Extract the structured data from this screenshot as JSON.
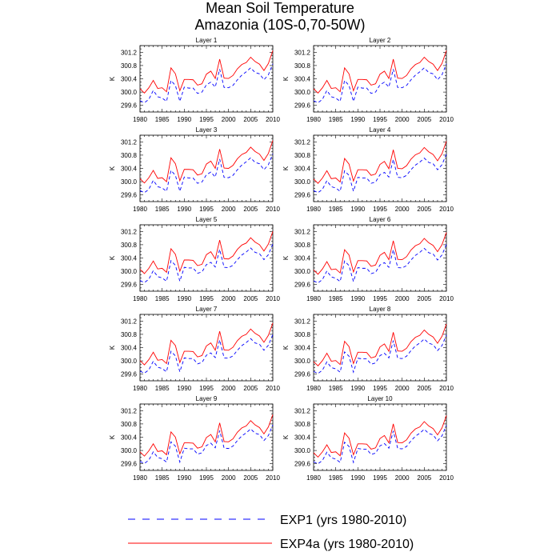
{
  "figure": {
    "title_line1": "Mean Soil Temperature",
    "title_line2": "Amazonia (10S-0,70-50W)"
  },
  "colors": {
    "exp1": "#0000ff",
    "exp4a": "#ff0000",
    "frame": "#000000"
  },
  "legend": {
    "placement": "bottom",
    "entries": [
      {
        "label": "EXP1 (yrs 1980-2010)",
        "color": "#0000ff",
        "style": "dashed"
      },
      {
        "label": "EXP4a (yrs 1980-2010)",
        "color": "#ff0000",
        "style": "solid"
      }
    ]
  },
  "chart_data": {
    "type": "line",
    "panel_count": 10,
    "layout": "5 rows x 2 columns",
    "ylabel": "K",
    "x": [
      1980,
      1981,
      1982,
      1983,
      1984,
      1985,
      1986,
      1987,
      1988,
      1989,
      1990,
      1991,
      1992,
      1993,
      1994,
      1995,
      1996,
      1997,
      1998,
      1999,
      2000,
      2001,
      2002,
      2003,
      2004,
      2005,
      2006,
      2007,
      2008,
      2009,
      2010
    ],
    "xlim": [
      1980,
      2010
    ],
    "xticks": [
      1980,
      1985,
      1990,
      1995,
      2000,
      2005,
      2010
    ],
    "xtick_labels": [
      "1980",
      "1985",
      "1990",
      "1995",
      "2000",
      "2005",
      "2010"
    ],
    "ylim": [
      299.4,
      301.4
    ],
    "yticks": [
      299.6,
      300.0,
      300.4,
      300.8,
      301.2
    ],
    "ytick_labels": [
      "299.6",
      "300.0",
      "300.4",
      "300.8",
      "301.2"
    ],
    "grid": false,
    "series_names": [
      "EXP1 (yrs 1980-2010)",
      "EXP4a (yrs 1980-2010)"
    ],
    "panels": [
      {
        "title": "Layer 1",
        "series": [
          {
            "name": "EXP1 (yrs 1980-2010)",
            "values": [
              299.74,
              299.68,
              299.78,
              300.05,
              299.86,
              299.82,
              299.72,
              300.35,
              300.2,
              299.72,
              300.15,
              300.12,
              300.12,
              299.96,
              300.0,
              300.22,
              300.3,
              300.15,
              300.69,
              300.14,
              300.13,
              300.2,
              300.37,
              300.51,
              300.61,
              300.73,
              300.59,
              300.55,
              300.37,
              300.52,
              300.85
            ]
          },
          {
            "name": "EXP4a (yrs 1980-2010)",
            "values": [
              300.1,
              299.97,
              300.13,
              300.35,
              300.11,
              300.13,
              300.01,
              300.73,
              300.55,
              300.04,
              300.38,
              300.38,
              300.37,
              300.21,
              300.25,
              300.54,
              300.63,
              300.41,
              300.99,
              300.42,
              300.41,
              300.5,
              300.7,
              300.83,
              300.89,
              301.05,
              300.92,
              300.84,
              300.65,
              300.86,
              301.25
            ]
          }
        ]
      },
      {
        "title": "Layer 2",
        "series": [
          {
            "name": "EXP1 (yrs 1980-2010)",
            "values": [
              299.74,
              299.68,
              299.78,
              300.05,
              299.86,
              299.82,
              299.72,
              300.35,
              300.2,
              299.72,
              300.15,
              300.12,
              300.12,
              299.96,
              300.0,
              300.22,
              300.3,
              300.15,
              300.69,
              300.14,
              300.13,
              300.2,
              300.37,
              300.51,
              300.61,
              300.73,
              300.59,
              300.55,
              300.37,
              300.52,
              300.85
            ]
          },
          {
            "name": "EXP4a (yrs 1980-2010)",
            "values": [
              300.1,
              299.97,
              300.13,
              300.35,
              300.11,
              300.13,
              300.01,
              300.73,
              300.55,
              300.04,
              300.38,
              300.38,
              300.37,
              300.21,
              300.25,
              300.54,
              300.63,
              300.41,
              300.99,
              300.42,
              300.41,
              300.5,
              300.7,
              300.83,
              300.89,
              301.05,
              300.92,
              300.84,
              300.65,
              300.86,
              301.25
            ]
          }
        ]
      },
      {
        "title": "Layer 3",
        "series": [
          {
            "name": "EXP1 (yrs 1980-2010)",
            "values": [
              299.73,
              299.67,
              299.77,
              300.04,
              299.85,
              299.81,
              299.71,
              300.34,
              300.19,
              299.71,
              300.14,
              300.11,
              300.11,
              299.95,
              299.99,
              300.21,
              300.29,
              300.14,
              300.68,
              300.13,
              300.12,
              300.19,
              300.36,
              300.5,
              300.6,
              300.72,
              300.58,
              300.54,
              300.36,
              300.51,
              300.84
            ]
          },
          {
            "name": "EXP4a (yrs 1980-2010)",
            "values": [
              300.09,
              299.96,
              300.12,
              300.34,
              300.1,
              300.12,
              300.0,
              300.72,
              300.54,
              300.03,
              300.37,
              300.37,
              300.36,
              300.2,
              300.24,
              300.53,
              300.62,
              300.4,
              300.98,
              300.41,
              300.4,
              300.49,
              300.69,
              300.82,
              300.88,
              301.04,
              300.91,
              300.83,
              300.64,
              300.85,
              301.24
            ]
          }
        ]
      },
      {
        "title": "Layer 4",
        "series": [
          {
            "name": "EXP1 (yrs 1980-2010)",
            "values": [
              299.73,
              299.67,
              299.77,
              300.03,
              299.85,
              299.81,
              299.71,
              300.33,
              300.19,
              299.71,
              300.13,
              300.11,
              300.11,
              299.95,
              299.99,
              300.21,
              300.28,
              300.14,
              300.67,
              300.13,
              300.12,
              300.19,
              300.36,
              300.5,
              300.59,
              300.71,
              300.58,
              300.54,
              300.36,
              300.51,
              300.83
            ]
          },
          {
            "name": "EXP4a (yrs 1980-2010)",
            "values": [
              300.08,
              299.95,
              300.11,
              300.33,
              300.09,
              300.11,
              299.99,
              300.7,
              300.53,
              300.02,
              300.36,
              300.36,
              300.35,
              300.19,
              300.23,
              300.52,
              300.61,
              300.39,
              300.96,
              300.4,
              300.39,
              300.48,
              300.68,
              300.81,
              300.87,
              301.03,
              300.9,
              300.82,
              300.63,
              300.84,
              301.22
            ]
          }
        ]
      },
      {
        "title": "Layer 5",
        "series": [
          {
            "name": "EXP1 (yrs 1980-2010)",
            "values": [
              299.72,
              299.66,
              299.76,
              300.02,
              299.84,
              299.8,
              299.7,
              300.32,
              300.18,
              299.7,
              300.12,
              300.1,
              300.1,
              299.94,
              299.98,
              300.2,
              300.27,
              300.13,
              300.66,
              300.12,
              300.11,
              300.18,
              300.35,
              300.49,
              300.58,
              300.7,
              300.57,
              300.53,
              300.35,
              300.5,
              300.82
            ]
          },
          {
            "name": "EXP4a (yrs 1980-2010)",
            "values": [
              300.06,
              299.93,
              300.09,
              300.31,
              300.07,
              300.09,
              299.97,
              300.68,
              300.51,
              300.0,
              300.34,
              300.34,
              300.33,
              300.17,
              300.21,
              300.5,
              300.59,
              300.37,
              300.94,
              300.38,
              300.37,
              300.46,
              300.66,
              300.79,
              300.85,
              301.01,
              300.88,
              300.8,
              300.61,
              300.82,
              301.2
            ]
          }
        ]
      },
      {
        "title": "Layer 6",
        "series": [
          {
            "name": "EXP1 (yrs 1980-2010)",
            "values": [
              299.71,
              299.65,
              299.75,
              300.01,
              299.83,
              299.79,
              299.69,
              300.31,
              300.17,
              299.69,
              300.11,
              300.09,
              300.09,
              299.93,
              299.97,
              300.19,
              300.26,
              300.12,
              300.65,
              300.11,
              300.1,
              300.17,
              300.34,
              300.48,
              300.57,
              300.69,
              300.56,
              300.52,
              300.34,
              300.49,
              300.81
            ]
          },
          {
            "name": "EXP4a (yrs 1980-2010)",
            "values": [
              300.04,
              299.91,
              300.07,
              300.29,
              300.05,
              300.07,
              299.95,
              300.65,
              300.49,
              299.98,
              300.32,
              300.32,
              300.31,
              300.15,
              300.19,
              300.48,
              300.57,
              300.35,
              300.92,
              300.36,
              300.35,
              300.44,
              300.64,
              300.77,
              300.83,
              300.99,
              300.86,
              300.78,
              300.59,
              300.8,
              301.17
            ]
          }
        ]
      },
      {
        "title": "Layer 7",
        "series": [
          {
            "name": "EXP1 (yrs 1980-2010)",
            "values": [
              299.69,
              299.63,
              299.73,
              299.99,
              299.81,
              299.77,
              299.67,
              300.29,
              300.15,
              299.67,
              300.09,
              300.07,
              300.07,
              299.91,
              299.95,
              300.17,
              300.24,
              300.1,
              300.63,
              300.09,
              300.08,
              300.15,
              300.32,
              300.46,
              300.55,
              300.67,
              300.54,
              300.5,
              300.32,
              300.47,
              300.79
            ]
          },
          {
            "name": "EXP4a (yrs 1980-2010)",
            "values": [
              300.01,
              299.88,
              300.04,
              300.26,
              300.02,
              300.04,
              299.92,
              300.62,
              300.46,
              299.95,
              300.29,
              300.29,
              300.28,
              300.12,
              300.16,
              300.45,
              300.54,
              300.32,
              300.89,
              300.33,
              300.32,
              300.41,
              300.61,
              300.74,
              300.8,
              300.96,
              300.83,
              300.75,
              300.56,
              300.77,
              301.14
            ]
          }
        ]
      },
      {
        "title": "Layer 8",
        "series": [
          {
            "name": "EXP1 (yrs 1980-2010)",
            "values": [
              299.68,
              299.62,
              299.72,
              299.97,
              299.8,
              299.76,
              299.66,
              300.27,
              300.14,
              299.66,
              300.08,
              300.06,
              300.06,
              299.9,
              299.94,
              300.16,
              300.23,
              300.09,
              300.61,
              300.08,
              300.07,
              300.14,
              300.31,
              300.45,
              300.54,
              300.66,
              300.53,
              300.49,
              300.31,
              300.46,
              300.78
            ]
          },
          {
            "name": "EXP4a (yrs 1980-2010)",
            "values": [
              299.98,
              299.85,
              300.01,
              300.23,
              299.99,
              300.01,
              299.89,
              300.59,
              300.43,
              299.92,
              300.26,
              300.26,
              300.25,
              300.09,
              300.13,
              300.42,
              300.51,
              300.29,
              300.86,
              300.3,
              300.29,
              300.38,
              300.58,
              300.71,
              300.77,
              300.93,
              300.8,
              300.72,
              300.53,
              300.74,
              301.11
            ]
          }
        ]
      },
      {
        "title": "Layer 9",
        "series": [
          {
            "name": "EXP1 (yrs 1980-2010)",
            "values": [
              299.67,
              299.61,
              299.71,
              299.96,
              299.79,
              299.75,
              299.65,
              300.26,
              300.13,
              299.65,
              300.07,
              300.05,
              300.05,
              299.89,
              299.93,
              300.15,
              300.22,
              300.08,
              300.6,
              300.07,
              300.06,
              300.13,
              300.3,
              300.44,
              300.53,
              300.65,
              300.52,
              300.48,
              300.3,
              300.45,
              300.77
            ]
          },
          {
            "name": "EXP4a (yrs 1980-2010)",
            "values": [
              299.96,
              299.83,
              299.99,
              300.2,
              299.97,
              299.99,
              299.87,
              300.56,
              300.4,
              299.9,
              300.23,
              300.23,
              300.22,
              300.07,
              300.11,
              300.39,
              300.48,
              300.26,
              300.83,
              300.27,
              300.26,
              300.35,
              300.55,
              300.68,
              300.74,
              300.9,
              300.77,
              300.69,
              300.5,
              300.71,
              301.08
            ]
          }
        ]
      },
      {
        "title": "Layer 10",
        "series": [
          {
            "name": "EXP1 (yrs 1980-2010)",
            "values": [
              299.66,
              299.6,
              299.7,
              299.95,
              299.78,
              299.74,
              299.64,
              300.25,
              300.12,
              299.64,
              300.06,
              300.04,
              300.04,
              299.88,
              299.92,
              300.14,
              300.21,
              300.07,
              300.59,
              300.06,
              300.05,
              300.12,
              300.29,
              300.43,
              300.52,
              300.64,
              300.51,
              300.47,
              300.29,
              300.44,
              300.76
            ]
          },
          {
            "name": "EXP4a (yrs 1980-2010)",
            "values": [
              299.93,
              299.8,
              299.96,
              300.17,
              299.94,
              299.96,
              299.84,
              300.53,
              300.37,
              299.87,
              300.2,
              300.2,
              300.19,
              300.04,
              300.08,
              300.36,
              300.45,
              300.23,
              300.8,
              300.24,
              300.23,
              300.32,
              300.52,
              300.65,
              300.71,
              300.87,
              300.74,
              300.66,
              300.47,
              300.68,
              301.05
            ]
          }
        ]
      }
    ]
  }
}
